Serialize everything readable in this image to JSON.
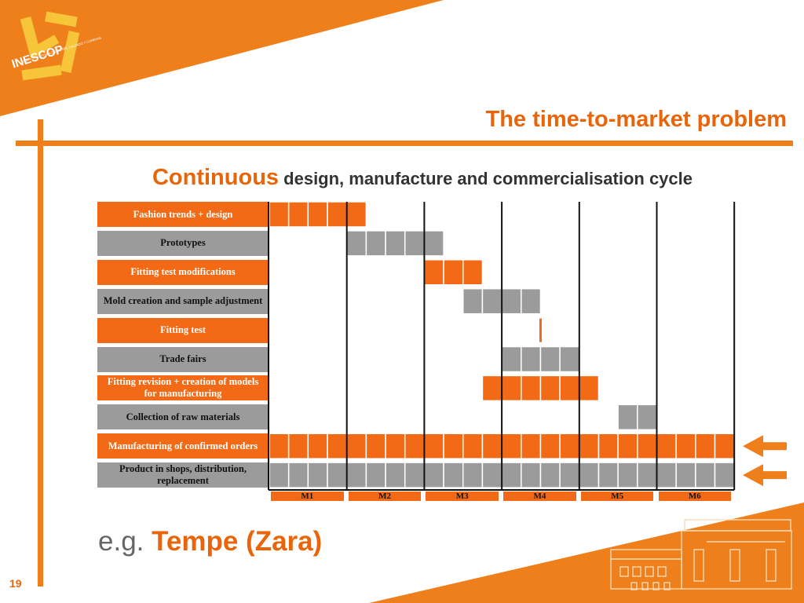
{
  "slide": {
    "title": "The time-to-market problem",
    "subtitle_lead": "Continuous",
    "subtitle_rest": " design, manufacture and commercialisation cycle",
    "example_prefix": "e.g.",
    "example_name": "Tempe (Zara)",
    "page_number": "19",
    "logo_text": "INESCOP",
    "logo_tagline": "INSTITUTO TECNOLÓGICO DEL CALZADO Y CONEXAS"
  },
  "colors": {
    "accent": "#ee7f1a",
    "bar_orange": "#f26a16",
    "bar_gray": "#9b9b9b"
  },
  "chart_data": {
    "type": "table",
    "months": [
      "M1",
      "M2",
      "M3",
      "M4",
      "M5",
      "M6"
    ],
    "tasks": [
      {
        "label": "Fashion trends + design",
        "color": "orange",
        "start": 0,
        "end": 1.25
      },
      {
        "label": "Prototypes",
        "color": "gray",
        "start": 1,
        "end": 2.25
      },
      {
        "label": "Fitting test modifications",
        "color": "orange",
        "start": 2,
        "end": 2.75
      },
      {
        "label": "Mold creation and sample adjustment",
        "color": "gray",
        "start": 2.5,
        "end": 3.5
      },
      {
        "label": "Fitting test",
        "color": "orange",
        "start": 3.5,
        "end": 3.5,
        "milestone": true
      },
      {
        "label": "Trade fairs",
        "color": "gray",
        "start": 3,
        "end": 4
      },
      {
        "label": "Fitting revision + creation of models for manufacturing",
        "color": "orange",
        "start": 2.75,
        "end": 4.25
      },
      {
        "label": "Collection of raw materials",
        "color": "gray",
        "start": 4.5,
        "end": 5
      },
      {
        "label": "Manufacturing of confirmed orders",
        "color": "orange",
        "start": 0,
        "end": 6
      },
      {
        "label": "Product in shops, distribution, replacement",
        "color": "gray",
        "start": 0,
        "end": 6
      }
    ],
    "highlighted_tasks": [
      8,
      9
    ]
  }
}
